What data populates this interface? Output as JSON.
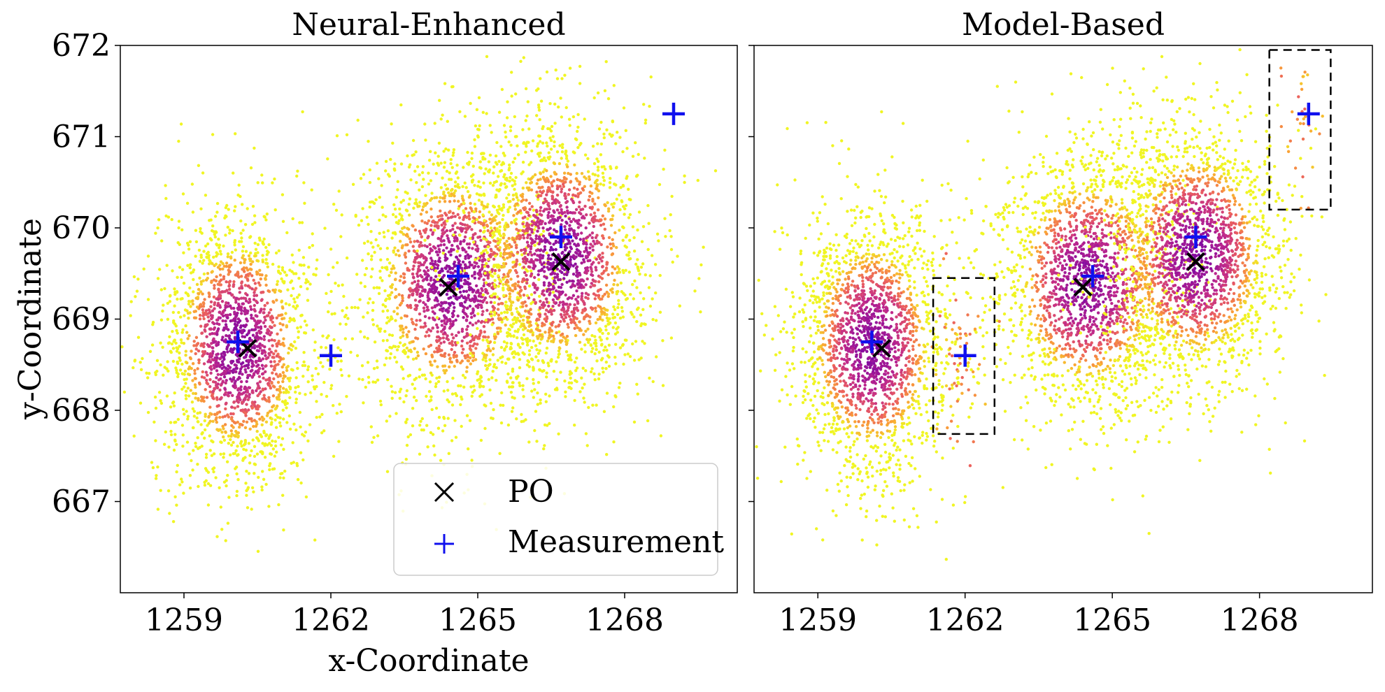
{
  "chart_data": [
    {
      "type": "scatter",
      "title": "Neural-Enhanced",
      "xlabel": "x-Coordinate",
      "ylabel": "y-Coordinate",
      "xlim": [
        1257.7,
        1270.3
      ],
      "ylim": [
        666.0,
        672.0
      ],
      "xticks": [
        "1259",
        "1262",
        "1265",
        "1268"
      ],
      "yticks": [
        "667",
        "668",
        "669",
        "670",
        "671",
        "672"
      ],
      "particle_clusters": [
        {
          "center": [
            1260.1,
            668.7
          ],
          "sx": 0.8,
          "sy": 0.75,
          "n": 1900
        },
        {
          "center": [
            1264.5,
            669.4
          ],
          "sx": 0.95,
          "sy": 0.75,
          "n": 1900
        },
        {
          "center": [
            1266.7,
            669.7
          ],
          "sx": 0.9,
          "sy": 0.75,
          "n": 1900
        }
      ],
      "series": [
        {
          "name": "PO",
          "marker": "x",
          "color": "#000000",
          "x": [
            1260.3,
            1264.4,
            1266.7
          ],
          "y": [
            668.68,
            669.35,
            669.63
          ]
        },
        {
          "name": "Measurement",
          "marker": "+",
          "color": "#1010ee",
          "x": [
            1260.1,
            1262.0,
            1264.6,
            1266.7,
            1269.0
          ],
          "y": [
            668.75,
            668.6,
            669.47,
            669.9,
            671.25
          ]
        }
      ],
      "legend": {
        "position": "lower-right",
        "entries": [
          "PO",
          "Measurement"
        ]
      }
    },
    {
      "type": "scatter",
      "title": "Model-Based",
      "xlim": [
        1257.7,
        1270.3
      ],
      "ylim": [
        666.0,
        672.0
      ],
      "xticks": [
        "1259",
        "1262",
        "1265",
        "1268"
      ],
      "particle_clusters": [
        {
          "center": [
            1260.1,
            668.7
          ],
          "sx": 0.8,
          "sy": 0.75,
          "n": 1900
        },
        {
          "center": [
            1264.5,
            669.4
          ],
          "sx": 0.95,
          "sy": 0.75,
          "n": 1900
        },
        {
          "center": [
            1266.7,
            669.7
          ],
          "sx": 0.9,
          "sy": 0.75,
          "n": 1900
        },
        {
          "center": [
            1261.9,
            668.6
          ],
          "sx": 0.25,
          "sy": 0.45,
          "n": 60,
          "sparse": true
        },
        {
          "center": [
            1268.8,
            671.1
          ],
          "sx": 0.18,
          "sy": 0.35,
          "n": 30,
          "sparse": true
        }
      ],
      "series": [
        {
          "name": "PO",
          "marker": "x",
          "color": "#000000",
          "x": [
            1260.3,
            1264.4,
            1266.7
          ],
          "y": [
            668.68,
            669.35,
            669.63
          ]
        },
        {
          "name": "Measurement",
          "marker": "+",
          "color": "#1010ee",
          "x": [
            1260.1,
            1262.0,
            1264.6,
            1266.7,
            1269.0
          ],
          "y": [
            668.75,
            668.6,
            669.47,
            669.9,
            671.25
          ]
        }
      ],
      "highlight_boxes": [
        {
          "x": [
            1261.35,
            1262.6
          ],
          "y": [
            667.74,
            669.45
          ]
        },
        {
          "x": [
            1268.2,
            1269.45
          ],
          "y": [
            670.2,
            671.95
          ]
        }
      ]
    }
  ]
}
